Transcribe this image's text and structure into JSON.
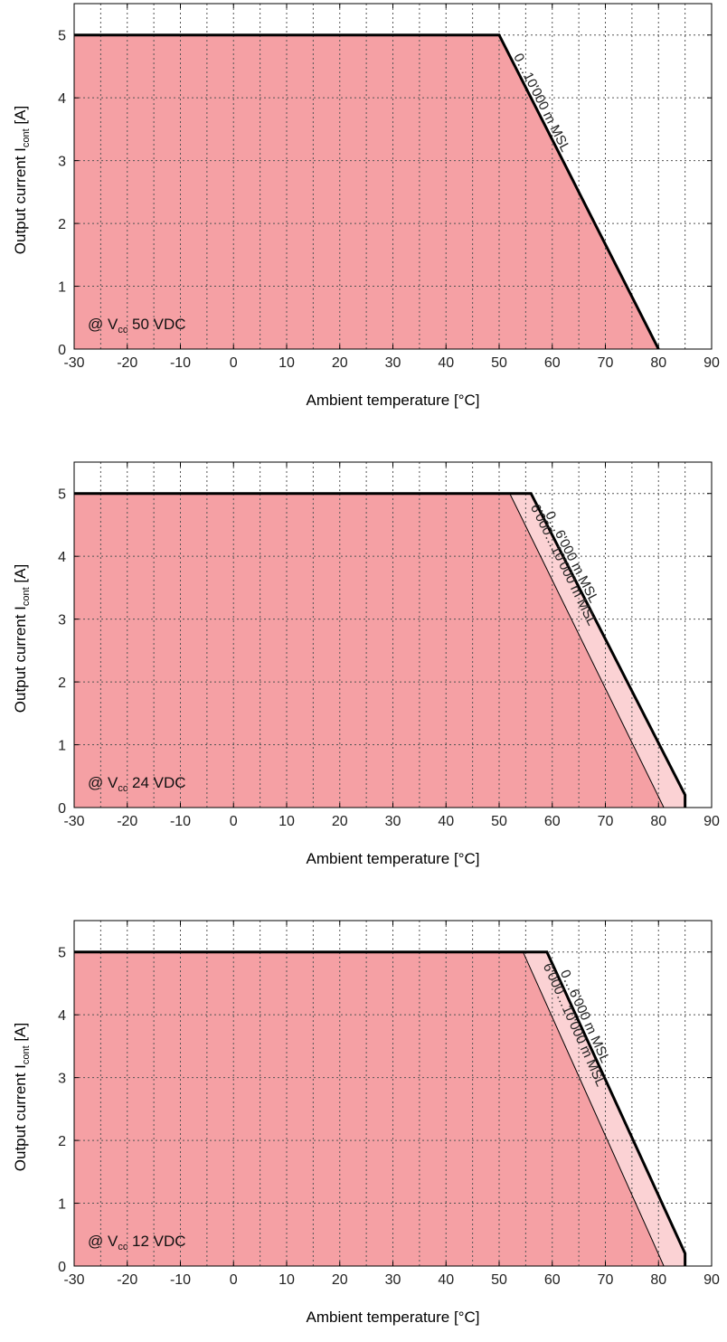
{
  "chart_data": [
    {
      "type": "area",
      "xlabel": "Ambient temperature [°C]",
      "ylabel_main": "Output current I",
      "ylabel_sub": "cont",
      "ylabel_unit": " [A]",
      "xlim": [
        -30,
        90
      ],
      "ylim": [
        0,
        5.5
      ],
      "xticks": [
        -30,
        -20,
        -10,
        0,
        10,
        20,
        30,
        40,
        50,
        60,
        70,
        80,
        90
      ],
      "yticks": [
        0,
        1,
        2,
        3,
        4,
        5
      ],
      "grid": true,
      "annotation": {
        "prefix": "@ V",
        "sub": "cc",
        "suffix": " 50 VDC"
      },
      "series": [
        {
          "name": "0…10'000 m MSL",
          "x": [
            -30,
            50,
            80
          ],
          "y": [
            5,
            5,
            0
          ],
          "end_drop": false
        }
      ]
    },
    {
      "type": "area",
      "xlabel": "Ambient temperature [°C]",
      "ylabel_main": "Output current I",
      "ylabel_sub": "cont",
      "ylabel_unit": " [A]",
      "xlim": [
        -30,
        90
      ],
      "ylim": [
        0,
        5.5
      ],
      "xticks": [
        -30,
        -20,
        -10,
        0,
        10,
        20,
        30,
        40,
        50,
        60,
        70,
        80,
        90
      ],
      "yticks": [
        0,
        1,
        2,
        3,
        4,
        5
      ],
      "grid": true,
      "annotation": {
        "prefix": "@ V",
        "sub": "cc",
        "suffix": " 24 VDC"
      },
      "series": [
        {
          "name": "0…6'000 m MSL",
          "x": [
            -30,
            56,
            85,
            85
          ],
          "y": [
            5,
            5,
            0.2,
            0
          ],
          "end_drop": true
        },
        {
          "name": "6'000…10'000 m MSL",
          "x": [
            -30,
            52,
            81
          ],
          "y": [
            5,
            5,
            0
          ],
          "end_drop": false
        }
      ]
    },
    {
      "type": "area",
      "xlabel": "Ambient temperature [°C]",
      "ylabel_main": "Output current I",
      "ylabel_sub": "cont",
      "ylabel_unit": " [A]",
      "xlim": [
        -30,
        90
      ],
      "ylim": [
        0,
        5.5
      ],
      "xticks": [
        -30,
        -20,
        -10,
        0,
        10,
        20,
        30,
        40,
        50,
        60,
        70,
        80,
        90
      ],
      "yticks": [
        0,
        1,
        2,
        3,
        4,
        5
      ],
      "grid": true,
      "annotation": {
        "prefix": "@ V",
        "sub": "cc",
        "suffix": " 12 VDC"
      },
      "series": [
        {
          "name": "0…6'000 m MSL",
          "x": [
            -30,
            59,
            85,
            85
          ],
          "y": [
            5,
            5,
            0.2,
            0
          ],
          "end_drop": true
        },
        {
          "name": "6'000…10'000 m MSL",
          "x": [
            -30,
            54.5,
            81
          ],
          "y": [
            5,
            5,
            0
          ],
          "end_drop": false
        }
      ]
    }
  ],
  "colors": {
    "dark_fill": "#f5a0a4",
    "light_fill": "#fbd2d4",
    "grid": "#555555",
    "curve": "#000000"
  }
}
